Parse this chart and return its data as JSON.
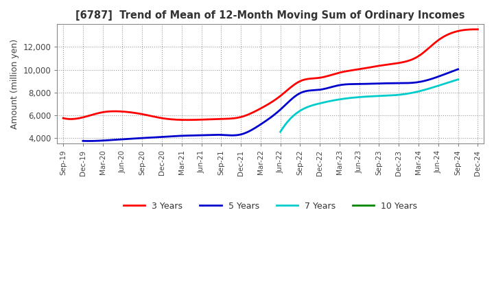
{
  "title": "[6787]  Trend of Mean of 12-Month Moving Sum of Ordinary Incomes",
  "ylabel": "Amount (million yen)",
  "ylim": [
    3500,
    14000
  ],
  "yticks": [
    4000,
    6000,
    8000,
    10000,
    12000
  ],
  "background_color": "#ffffff",
  "plot_bg_color": "#ffffff",
  "grid_color": "#999999",
  "legend_labels": [
    "3 Years",
    "5 Years",
    "7 Years",
    "10 Years"
  ],
  "legend_colors": [
    "#ff0000",
    "#0000cc",
    "#00cccc",
    "#008800"
  ],
  "x_labels": [
    "Sep-19",
    "Dec-19",
    "Mar-20",
    "Jun-20",
    "Sep-20",
    "Dec-20",
    "Mar-21",
    "Jun-21",
    "Sep-21",
    "Dec-21",
    "Mar-22",
    "Jun-22",
    "Sep-22",
    "Dec-22",
    "Mar-23",
    "Jun-23",
    "Sep-23",
    "Dec-23",
    "Mar-24",
    "Jun-24",
    "Sep-24",
    "Dec-24"
  ],
  "series_3y": [
    5750,
    5820,
    6270,
    6330,
    6100,
    5750,
    5600,
    5620,
    5680,
    5850,
    6600,
    7700,
    9000,
    9300,
    9750,
    10050,
    10350,
    10600,
    11200,
    12600,
    13400,
    13550
  ],
  "series_5y_x": [
    1,
    2,
    3,
    4,
    5,
    6,
    7,
    8,
    9,
    10,
    11,
    12,
    13,
    14,
    15,
    16,
    17,
    18,
    19,
    20
  ],
  "series_5y_y": [
    3750,
    3780,
    3900,
    4000,
    4100,
    4200,
    4250,
    4280,
    4320,
    5200,
    6500,
    7950,
    8250,
    8650,
    8750,
    8800,
    8820,
    8920,
    9400,
    10050
  ],
  "series_7y_x": [
    11,
    12,
    13,
    14,
    15,
    16,
    17,
    18,
    19,
    20
  ],
  "series_7y_y": [
    4550,
    6400,
    7050,
    7400,
    7600,
    7700,
    7800,
    8100,
    8600,
    9150
  ],
  "series_10y_x": [],
  "series_10y_y": []
}
